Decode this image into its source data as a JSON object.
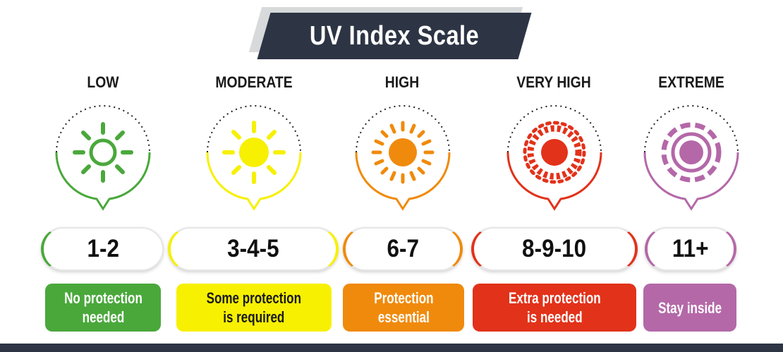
{
  "title": "UV Index Scale",
  "levels": [
    {
      "label": "LOW",
      "range": "1-2",
      "desc_line1": "No protection",
      "desc_line2": "needed",
      "color": "#4aa83b",
      "desc_text_color": "#ffffff",
      "sun_style": "outline-rays",
      "icon": "sun-outline-icon"
    },
    {
      "label": "MODERATE",
      "range": "3-4-5",
      "desc_line1": "Some protection",
      "desc_line2": "is required",
      "color": "#f7f001",
      "desc_text_color": "#1a1a1a",
      "sun_style": "solid-rays",
      "icon": "sun-solid-icon"
    },
    {
      "label": "HIGH",
      "range": "6-7",
      "desc_line1": "Protection",
      "desc_line2": "essential",
      "color": "#f08a0c",
      "desc_text_color": "#ffffff",
      "sun_style": "many-rays",
      "icon": "sun-bright-icon"
    },
    {
      "label": "VERY HIGH",
      "range": "8-9-10",
      "desc_line1": "Extra protection",
      "desc_line2": "is needed",
      "color": "#e2321a",
      "desc_text_color": "#ffffff",
      "sun_style": "dense-rays",
      "icon": "sun-intense-icon"
    },
    {
      "label": "EXTREME",
      "range": "11+",
      "desc_line1": "Stay inside",
      "desc_line2": "",
      "color": "#b468a8",
      "desc_text_color": "#ffffff",
      "sun_style": "ringed",
      "icon": "sun-extreme-icon"
    }
  ]
}
